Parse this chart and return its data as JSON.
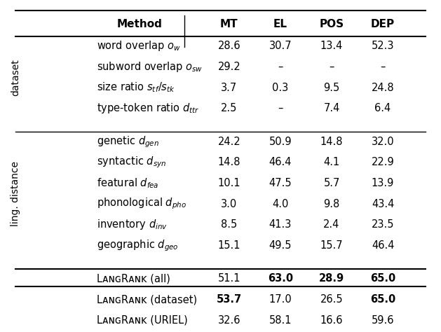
{
  "header": [
    "Method",
    "MT",
    "EL",
    "POS",
    "DEP"
  ],
  "sections": [
    {
      "label": "dataset",
      "rows": [
        {
          "method": "word overlap $o_w$",
          "mt": "28.6",
          "el": "30.7",
          "pos": "13.4",
          "dep": "52.3",
          "bold": []
        },
        {
          "method": "subword overlap $o_{sw}$",
          "mt": "29.2",
          "el": "–",
          "pos": "–",
          "dep": "–",
          "bold": []
        },
        {
          "method": "size ratio $s_{tf}/s_{tk}$",
          "mt": "3.7",
          "el": "0.3",
          "pos": "9.5",
          "dep": "24.8",
          "bold": []
        },
        {
          "method": "type-token ratio $d_{ttr}$",
          "mt": "2.5",
          "el": "–",
          "pos": "7.4",
          "dep": "6.4",
          "bold": []
        }
      ]
    },
    {
      "label": "ling. distance",
      "rows": [
        {
          "method": "genetic $d_{gen}$",
          "mt": "24.2",
          "el": "50.9",
          "pos": "14.8",
          "dep": "32.0",
          "bold": []
        },
        {
          "method": "syntactic $d_{syn}$",
          "mt": "14.8",
          "el": "46.4",
          "pos": "4.1",
          "dep": "22.9",
          "bold": []
        },
        {
          "method": "featural $d_{fea}$",
          "mt": "10.1",
          "el": "47.5",
          "pos": "5.7",
          "dep": "13.9",
          "bold": []
        },
        {
          "method": "phonological $d_{pho}$",
          "mt": "3.0",
          "el": "4.0",
          "pos": "9.8",
          "dep": "43.4",
          "bold": []
        },
        {
          "method": "inventory $d_{inv}$",
          "mt": "8.5",
          "el": "41.3",
          "pos": "2.4",
          "dep": "23.5",
          "bold": []
        },
        {
          "method": "geographic $d_{geo}$",
          "mt": "15.1",
          "el": "49.5",
          "pos": "15.7",
          "dep": "46.4",
          "bold": []
        }
      ]
    }
  ],
  "langrank_rows": [
    {
      "method": "LᴀɴɢRᴀɴᴋ (all)",
      "mt": "51.1",
      "el": "63.0",
      "pos": "28.9",
      "dep": "65.0",
      "bold": [
        "el",
        "pos",
        "dep"
      ]
    },
    {
      "method": "LᴀɴɢRᴀɴᴋ (dataset)",
      "mt": "53.7",
      "el": "17.0",
      "pos": "26.5",
      "dep": "65.0",
      "bold": [
        "mt",
        "dep"
      ]
    },
    {
      "method": "LᴀɴɢRᴀɴᴋ (URIEL)",
      "mt": "32.6",
      "el": "58.1",
      "pos": "16.6",
      "dep": "59.6",
      "bold": []
    }
  ],
  "bg_color": "#ffffff",
  "text_color": "#000000",
  "line_color": "#000000"
}
